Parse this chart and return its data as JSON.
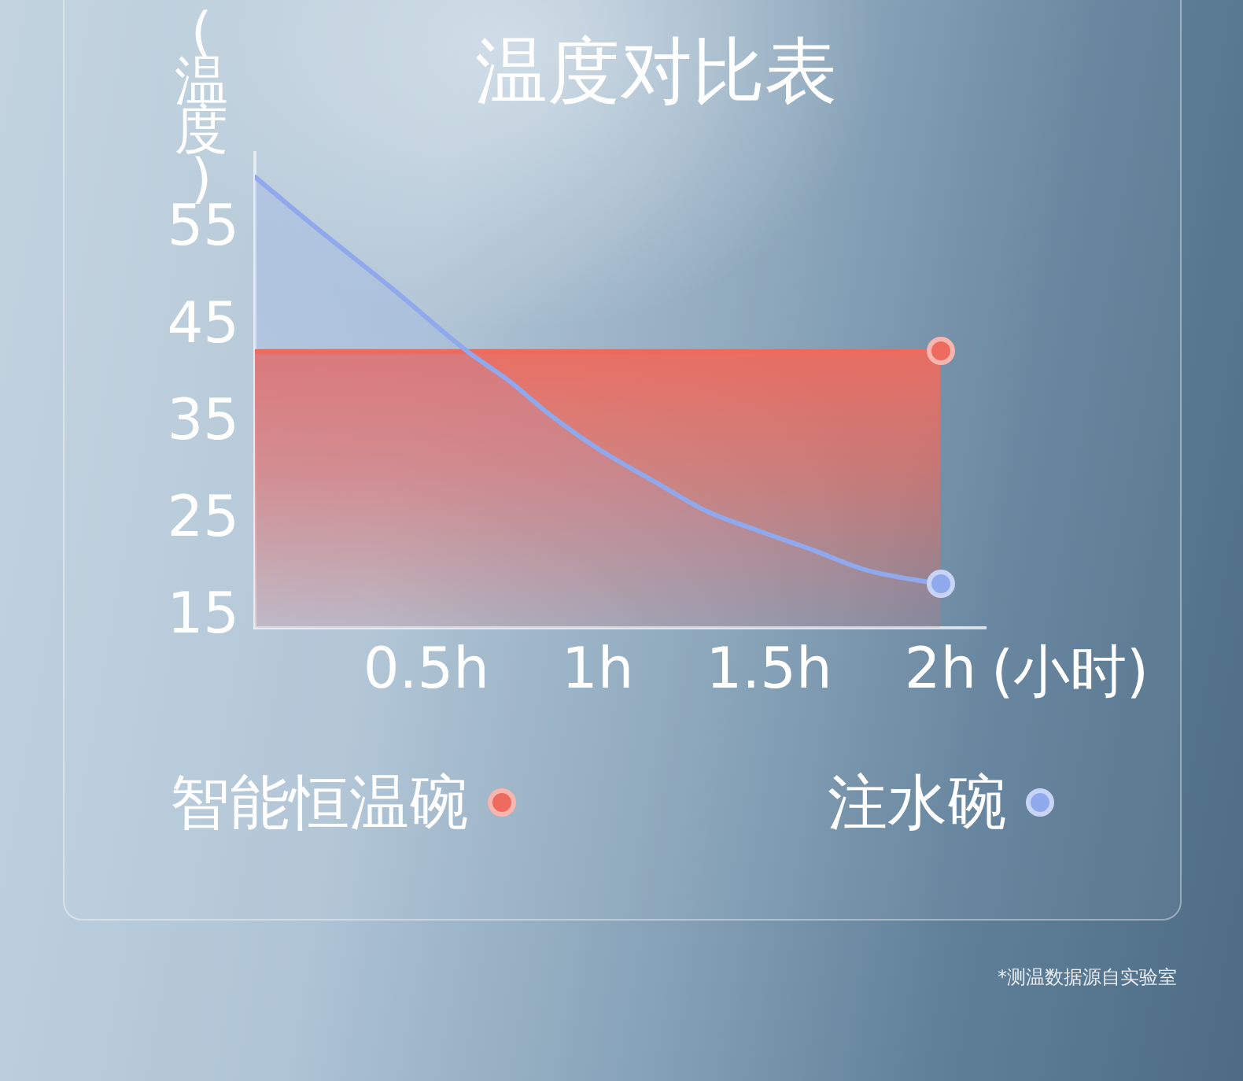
{
  "chart_data": {
    "type": "area",
    "title": "温度对比表",
    "ylabel": "(温度)",
    "xlabel": "(小时)",
    "series": [
      {
        "name": "智能恒温碗",
        "color": "#ec6b5e",
        "x": [
          0,
          2
        ],
        "values": [
          42.5,
          42.5
        ]
      },
      {
        "name": "注水碗",
        "color": "#90a8ec",
        "x": [
          0,
          0.17,
          0.4,
          0.62,
          0.74,
          0.86,
          1.0,
          1.17,
          1.32,
          1.47,
          1.63,
          1.78,
          2
        ],
        "values": [
          60.5,
          55.5,
          49,
          42.5,
          39.5,
          36,
          32.5,
          29,
          26,
          24,
          22,
          20,
          18.5
        ]
      }
    ],
    "xlim": [
      0,
      2.13
    ],
    "xticks": [
      {
        "value": 0.5,
        "label": "0.5h"
      },
      {
        "value": 1,
        "label": "1h"
      },
      {
        "value": 1.5,
        "label": "1.5h"
      },
      {
        "value": 2,
        "label": "2h"
      }
    ],
    "ylim": [
      14,
      63
    ],
    "yticks": [
      15,
      25,
      35,
      45,
      55
    ],
    "grid": false,
    "legend": "bottom",
    "line_style": "solid",
    "annotations": [
      "*测温数据源自实验室"
    ]
  }
}
